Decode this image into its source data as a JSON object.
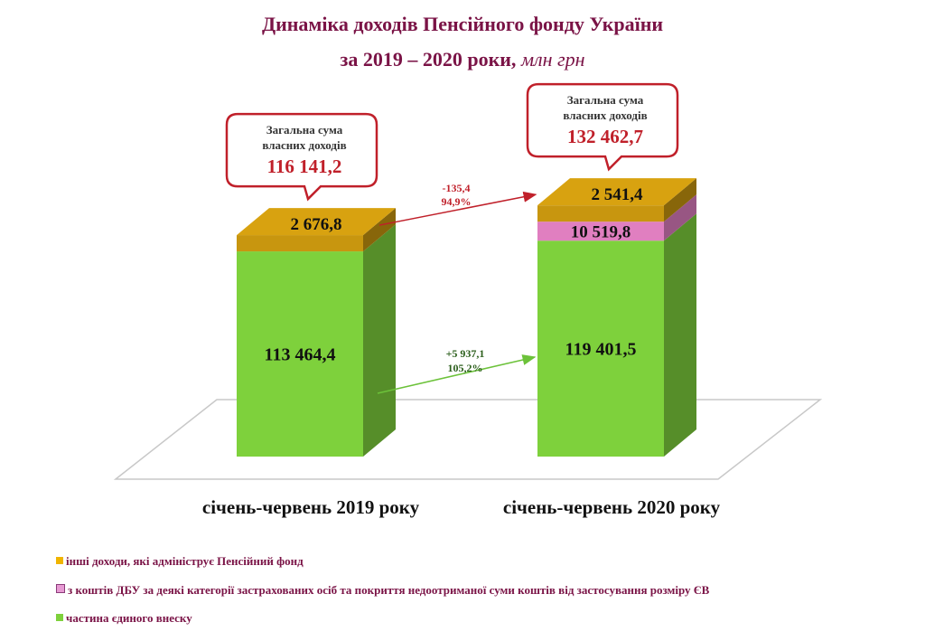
{
  "title": {
    "line1": "Динаміка доходів Пенсійного фонду України",
    "line2": "за 2019 – 2020 роки,",
    "unit": "млн грн"
  },
  "colors": {
    "title": "#7a1346",
    "green": "#7ed13c",
    "orange": "#c8960f",
    "pink": "#e07fc0",
    "arrow_red": "#c0202a",
    "arrow_green": "#6cc23a"
  },
  "chart_data": {
    "type": "bar",
    "stacked": true,
    "categories": [
      "січень-червень 2019 року",
      "січень-червень 2020 року"
    ],
    "series": [
      {
        "name": "частина єдиного внеску",
        "values": [
          113464.4,
          119401.5
        ],
        "labels": [
          "113 464,4",
          "119 401,5"
        ],
        "color": "#7ed13c"
      },
      {
        "name": "з коштів ДБУ за деякі категорії застрахованих осіб та покриття недоотриманої суми коштів від застосування розміру ЄВ",
        "values": [
          0,
          10519.8
        ],
        "labels": [
          "",
          "10 519,8"
        ],
        "color": "#e07fc0"
      },
      {
        "name": "інші доходи, які адмініструє Пенсійний фонд",
        "values": [
          2676.8,
          2541.4
        ],
        "labels": [
          "2 676,8",
          "2 541,4"
        ],
        "color": "#c8960f"
      }
    ],
    "totals": {
      "caption_line1": "Загальна сума",
      "caption_line2": "власних доходів",
      "values": [
        "116 141,2",
        "132 462,7"
      ]
    },
    "changes": [
      {
        "series": "інші доходи, які адмініструє Пенсійний фонд",
        "delta": "-135,4",
        "percent": "94,9%"
      },
      {
        "series": "частина єдиного внеску",
        "delta": "+5 937,1",
        "percent": "105,2%"
      }
    ],
    "legend_position": "bottom-left"
  }
}
